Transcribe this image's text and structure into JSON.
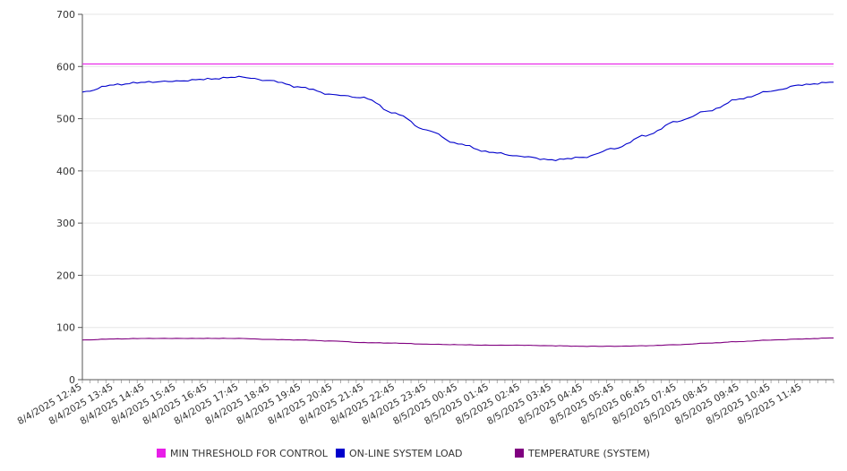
{
  "chart_data": {
    "type": "line",
    "ylim": [
      0,
      700
    ],
    "yticks": [
      0,
      100,
      200,
      300,
      400,
      500,
      600,
      700
    ],
    "x_tick_labels": [
      "8/4/2025 12:45",
      "8/4/2025 13:45",
      "8/4/2025 14:45",
      "8/4/2025 15:45",
      "8/4/2025 16:45",
      "8/4/2025 17:45",
      "8/4/2025 18:45",
      "8/4/2025 19:45",
      "8/4/2025 20:45",
      "8/4/2025 21:45",
      "8/4/2025 22:45",
      "8/4/2025 23:45",
      "8/5/2025 00:45",
      "8/5/2025 01:45",
      "8/5/2025 02:45",
      "8/5/2025 03:45",
      "8/5/2025 04:45",
      "8/5/2025 05:45",
      "8/5/2025 06:45",
      "8/5/2025 07:45",
      "8/5/2025 08:45",
      "8/5/2025 09:45",
      "8/5/2025 10:45",
      "8/5/2025 11:45"
    ],
    "x_hours": [
      0,
      1,
      2,
      3,
      4,
      5,
      6,
      7,
      8,
      9,
      10,
      11,
      12,
      13,
      14,
      15,
      16,
      17,
      18,
      19,
      20,
      21,
      22,
      23,
      24
    ],
    "grid": true,
    "legend": "bottom",
    "series": [
      {
        "name": "MIN THRESHOLD FOR CONTROL",
        "color": "#e81ee8",
        "values": [
          605,
          605,
          605,
          605,
          605,
          605,
          605,
          605,
          605,
          605,
          605,
          605,
          605,
          605,
          605,
          605,
          605,
          605,
          605,
          605,
          605,
          605,
          605,
          605,
          605
        ]
      },
      {
        "name": "ON-LINE SYSTEM LOAD",
        "color": "#0000cc",
        "values": [
          551,
          565,
          570,
          572,
          576,
          580,
          573,
          560,
          546,
          540,
          510,
          478,
          452,
          436,
          428,
          421,
          426,
          443,
          468,
          495,
          515,
          538,
          553,
          565,
          570
        ]
      },
      {
        "name": "TEMPERATURE (SYSTEM)",
        "color": "#800080",
        "values": [
          76,
          78,
          79,
          79,
          79,
          79,
          77,
          76,
          74,
          71,
          70,
          68,
          67,
          66,
          66,
          65,
          64,
          64,
          65,
          67,
          70,
          73,
          76,
          78,
          80
        ]
      }
    ]
  }
}
